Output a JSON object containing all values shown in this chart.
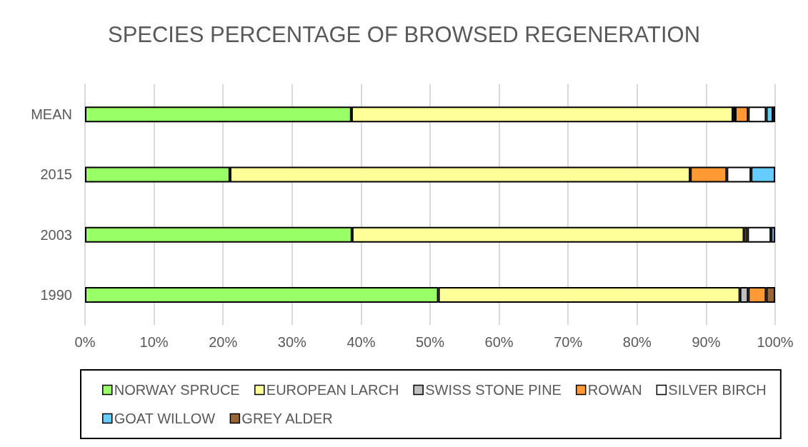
{
  "chart_data": {
    "type": "bar",
    "orientation": "horizontal",
    "stacked": true,
    "title": "SPECIES PERCENTAGE OF BROWSED REGENERATION",
    "categories": [
      "MEAN",
      "2015",
      "2003",
      "1990"
    ],
    "series": [
      {
        "name": "NORWAY SPRUCE",
        "color": "#99ff66",
        "values": [
          38.6,
          21.0,
          38.7,
          51.2
        ]
      },
      {
        "name": "EUROPEAN LARCH",
        "color": "#ffff99",
        "values": [
          55.3,
          66.7,
          56.8,
          43.7
        ]
      },
      {
        "name": "SWISS STONE PINE",
        "color": "#c0c0c0",
        "values": [
          0.3,
          null,
          null,
          1.2
        ]
      },
      {
        "name": "ROWAN",
        "color": "#ff9933",
        "values": [
          1.9,
          5.3,
          0.5,
          2.6
        ]
      },
      {
        "name": "SILVER BIRCH",
        "color": "#ffffff",
        "values": [
          2.6,
          3.5,
          3.4,
          null
        ]
      },
      {
        "name": "GOAT WILLOW",
        "color": "#66ccff",
        "values": [
          1.0,
          3.5,
          0.6,
          null
        ]
      },
      {
        "name": "GREY ALDER",
        "color": "#996633",
        "values": [
          0.3,
          null,
          null,
          1.3
        ]
      }
    ],
    "xlim": [
      0,
      100
    ],
    "xticks": [
      {
        "value": 0,
        "label": "0%"
      },
      {
        "value": 10,
        "label": "10%"
      },
      {
        "value": 20,
        "label": "20%"
      },
      {
        "value": 30,
        "label": "30%"
      },
      {
        "value": 40,
        "label": "40%"
      },
      {
        "value": 50,
        "label": "50%"
      },
      {
        "value": 60,
        "label": "60%"
      },
      {
        "value": 70,
        "label": "70%"
      },
      {
        "value": 80,
        "label": "80%"
      },
      {
        "value": 90,
        "label": "90%"
      },
      {
        "value": 100,
        "label": "100%"
      }
    ],
    "grid": "x",
    "legend": "bottom"
  }
}
